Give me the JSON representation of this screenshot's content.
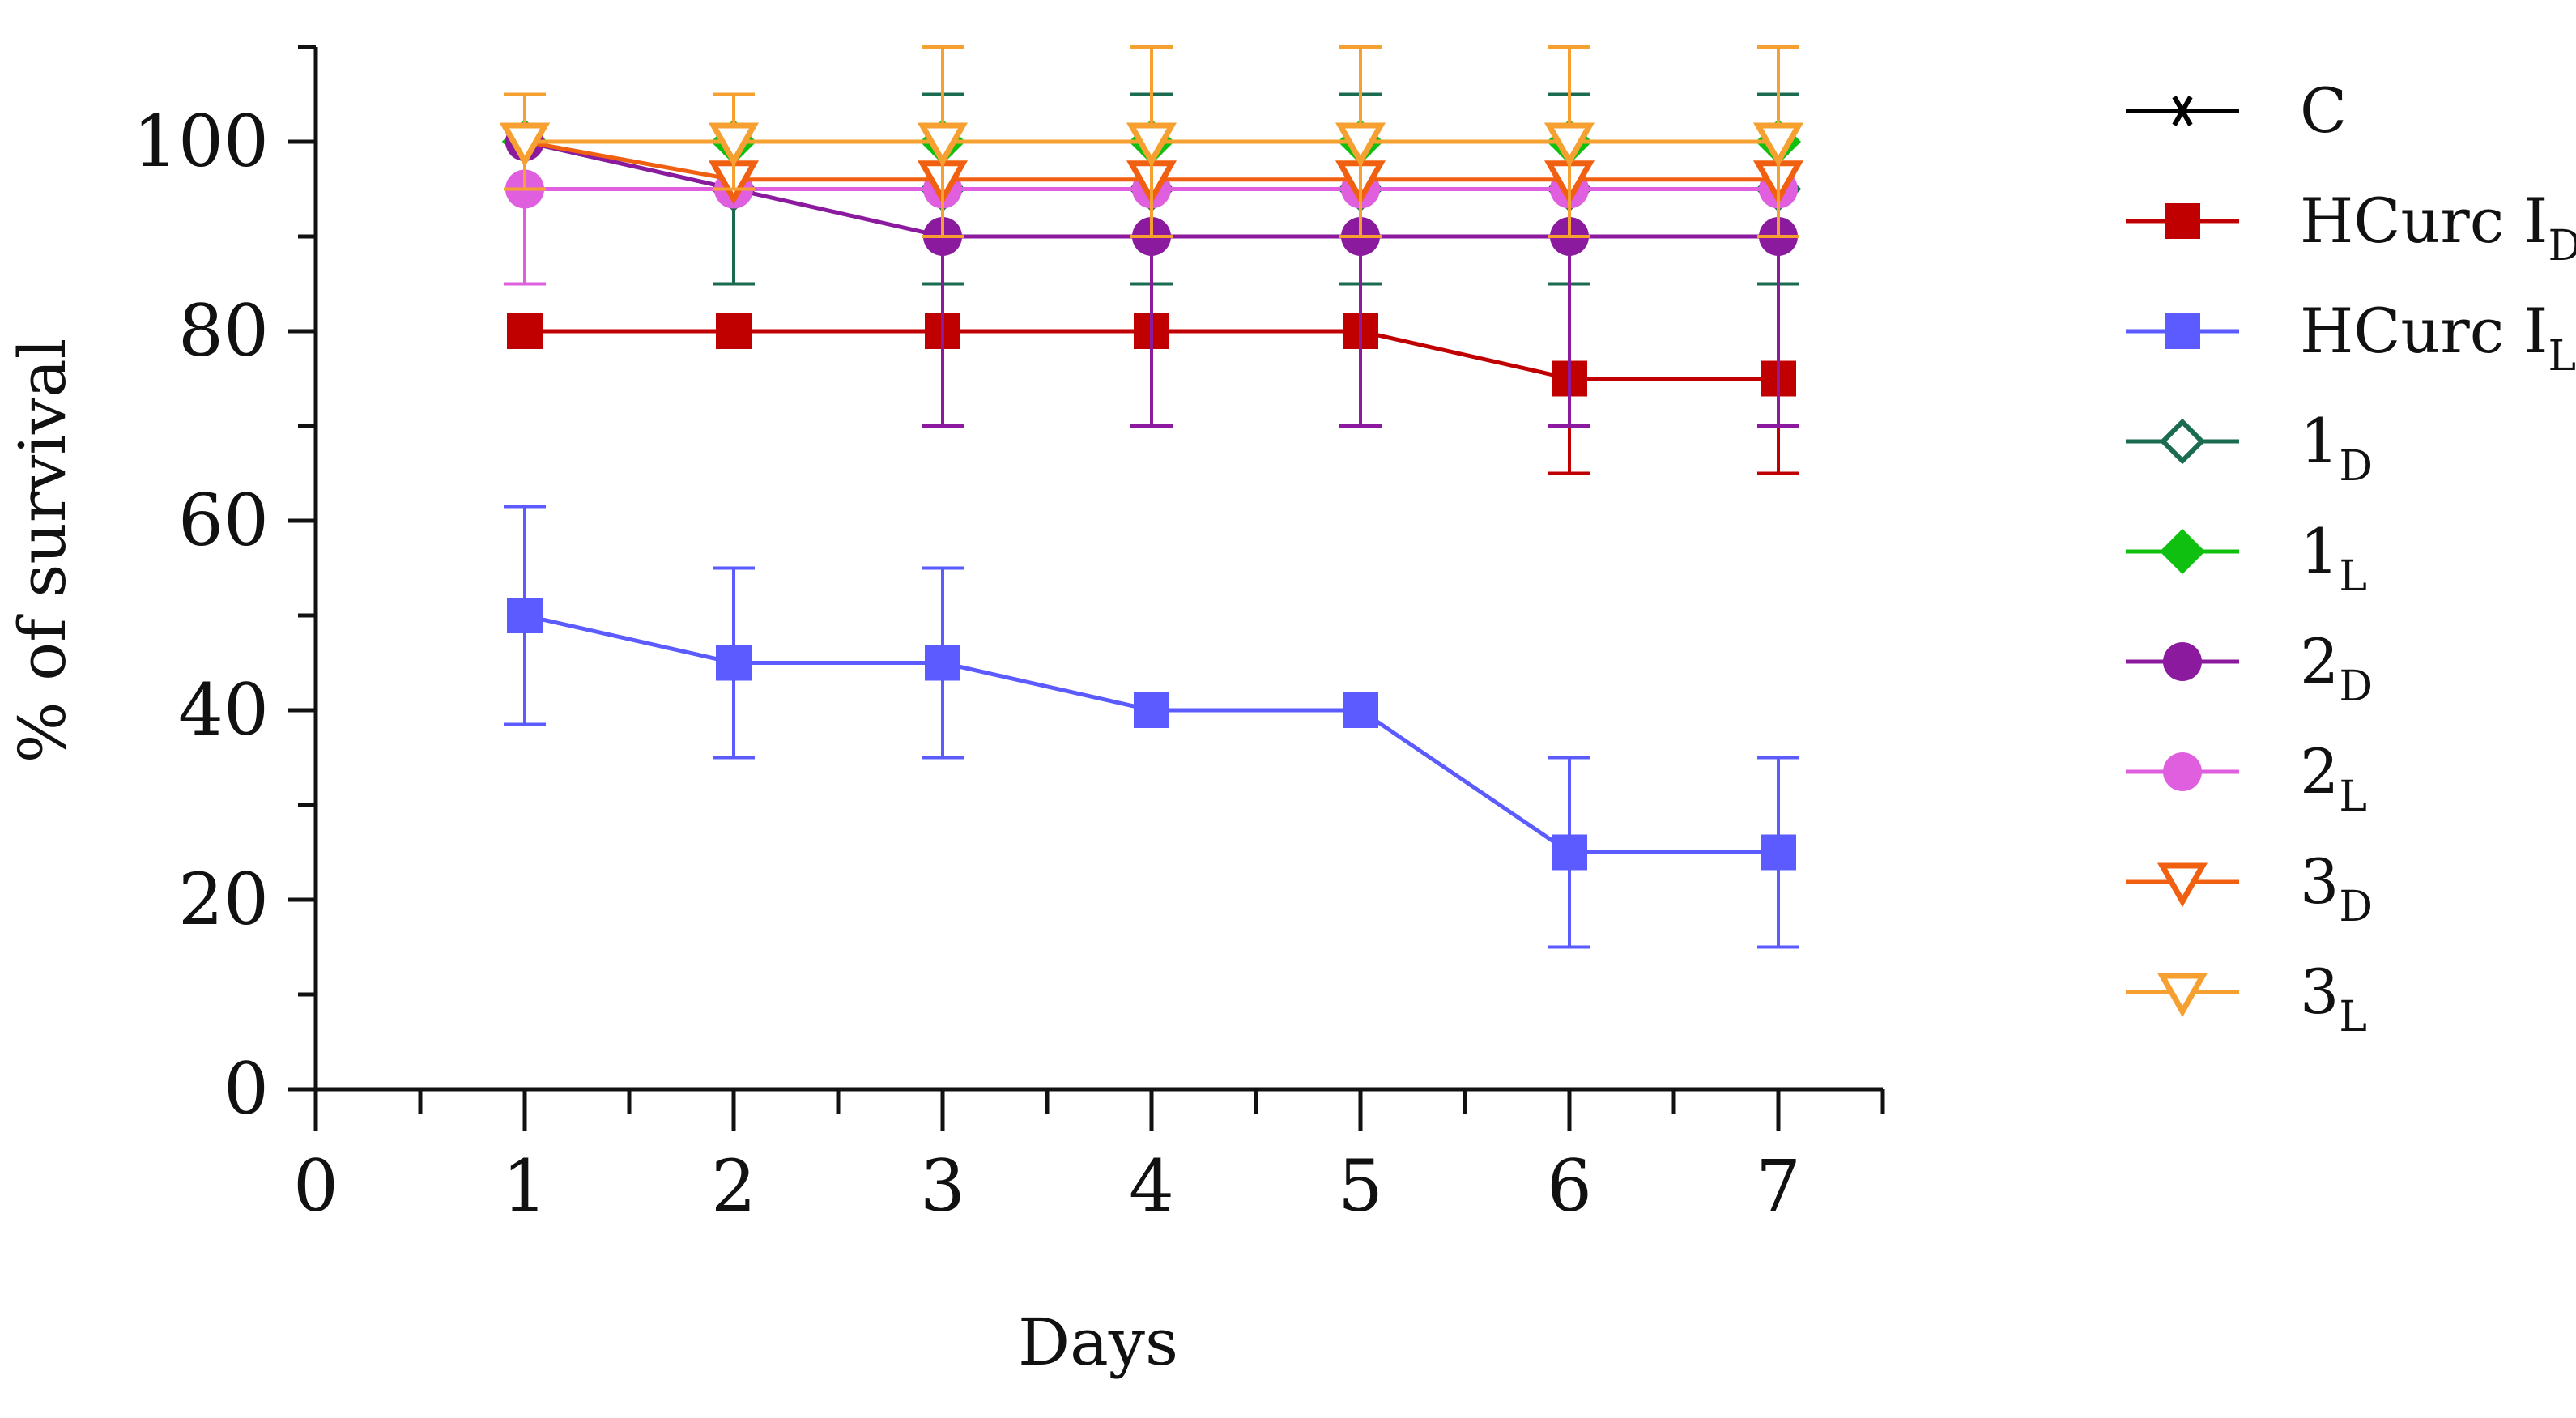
{
  "chart_data": {
    "type": "line",
    "xlabel": "Days",
    "ylabel": "% of survival",
    "xlim": [
      0,
      7.5
    ],
    "ylim": [
      0,
      110
    ],
    "x_ticks": [
      0,
      1,
      2,
      3,
      4,
      5,
      6,
      7
    ],
    "y_ticks": [
      0,
      20,
      40,
      60,
      80,
      100
    ],
    "legend_position": "right",
    "series": [
      {
        "key": "C",
        "name": "C",
        "sub": "",
        "marker": "star",
        "color": "#000000",
        "x": [
          1,
          2,
          3,
          4,
          5,
          6,
          7
        ],
        "values": [
          100,
          100,
          100,
          100,
          100,
          100,
          100
        ],
        "err": [
          0,
          0,
          0,
          0,
          0,
          0,
          0
        ]
      },
      {
        "key": "HCurcID",
        "name": "HCurc I",
        "sub": "D",
        "marker": "square",
        "color": "#c00000",
        "x": [
          1,
          2,
          3,
          4,
          5,
          6,
          7
        ],
        "values": [
          80,
          80,
          80,
          80,
          80,
          75,
          75
        ],
        "err": [
          0,
          0,
          0,
          0,
          0,
          10,
          10
        ]
      },
      {
        "key": "HCurcIL",
        "name": "HCurc I",
        "sub": "L",
        "marker": "square",
        "color": "#5b5bff",
        "x": [
          1,
          2,
          3,
          4,
          5,
          6,
          7
        ],
        "values": [
          50,
          45,
          45,
          40,
          40,
          25,
          25
        ],
        "err": [
          11.5,
          10,
          10,
          0,
          0,
          10,
          10
        ]
      },
      {
        "key": "1D",
        "name": "1",
        "sub": "D",
        "marker": "diamond-open",
        "color": "#1a6b50",
        "x": [
          1,
          2,
          3,
          4,
          5,
          6,
          7
        ],
        "values": [
          100,
          95,
          95,
          95,
          95,
          95,
          95
        ],
        "err": [
          0,
          10,
          10,
          10,
          10,
          10,
          10
        ]
      },
      {
        "key": "1L",
        "name": "1",
        "sub": "L",
        "marker": "diamond",
        "color": "#10c010",
        "x": [
          1,
          2,
          3,
          4,
          5,
          6,
          7
        ],
        "values": [
          100,
          100,
          100,
          100,
          100,
          100,
          100
        ],
        "err": [
          0,
          0,
          0,
          0,
          0,
          0,
          0
        ]
      },
      {
        "key": "2D",
        "name": "2",
        "sub": "D",
        "marker": "circle",
        "color": "#8b1a9e",
        "x": [
          1,
          2,
          3,
          4,
          5,
          6,
          7
        ],
        "values": [
          100,
          95,
          90,
          90,
          90,
          90,
          90
        ],
        "err": [
          0,
          0,
          20,
          20,
          20,
          20,
          20
        ]
      },
      {
        "key": "2L",
        "name": "2",
        "sub": "L",
        "marker": "circle",
        "color": "#df5fdf",
        "x": [
          1,
          2,
          3,
          4,
          5,
          6,
          7
        ],
        "values": [
          95,
          95,
          95,
          95,
          95,
          95,
          95
        ],
        "err": [
          10,
          0,
          0,
          0,
          0,
          0,
          0
        ]
      },
      {
        "key": "3D",
        "name": "3",
        "sub": "D",
        "marker": "triangle-down-open",
        "color": "#f06010",
        "x": [
          1,
          2,
          3,
          4,
          5,
          6,
          7
        ],
        "values": [
          100,
          96,
          96,
          96,
          96,
          96,
          96
        ],
        "err": [
          5,
          0,
          0,
          0,
          0,
          0,
          0
        ]
      },
      {
        "key": "3L",
        "name": "3",
        "sub": "L",
        "marker": "triangle-down-open",
        "color": "#f5a030",
        "x": [
          1,
          2,
          3,
          4,
          5,
          6,
          7
        ],
        "values": [
          100,
          100,
          100,
          100,
          100,
          100,
          100
        ],
        "err": [
          5,
          5,
          10,
          10,
          10,
          10,
          10
        ]
      }
    ]
  }
}
